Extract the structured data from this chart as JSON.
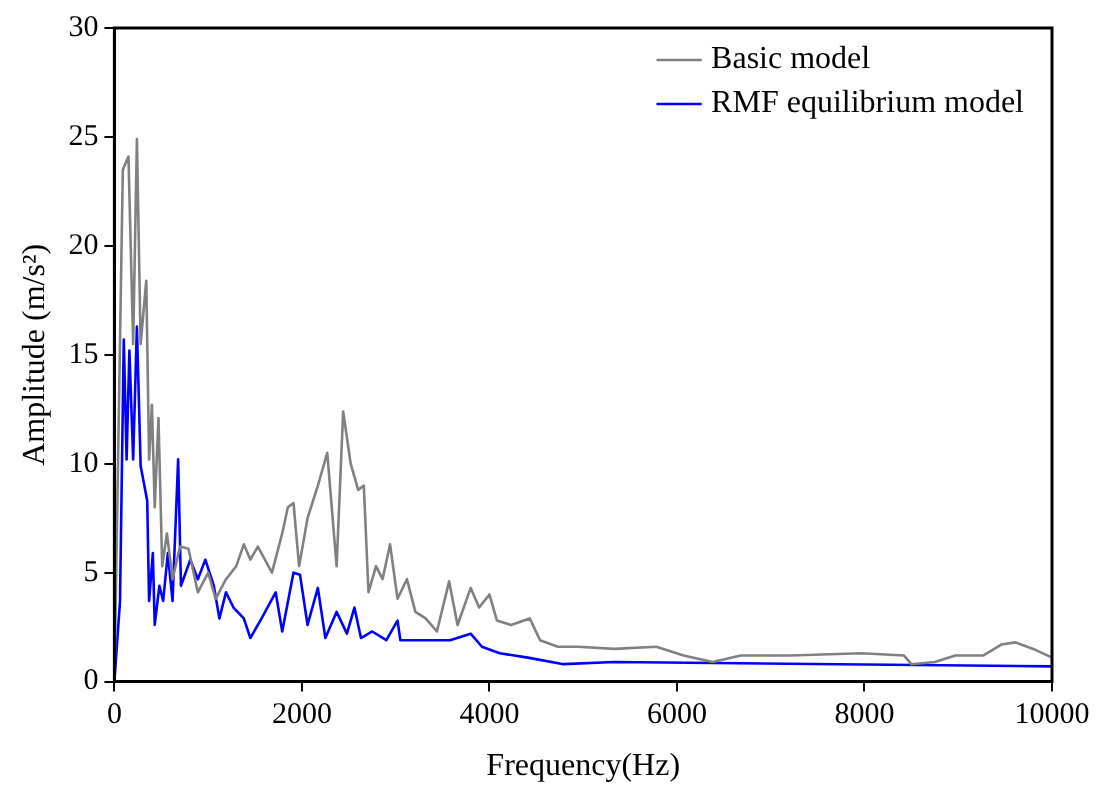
{
  "chart_data": {
    "type": "line",
    "xlabel": "Frequency(Hz)",
    "ylabel": "Amplitude (m/s²)",
    "xlim": [
      0,
      10000
    ],
    "xticks": [
      0,
      2000,
      4000,
      6000,
      8000,
      10000
    ],
    "ylim": [
      0,
      30
    ],
    "yticks": [
      0,
      5,
      10,
      15,
      20,
      25,
      30
    ],
    "grid": false,
    "legend": "top right",
    "marker": "none",
    "line_style": "solid",
    "series": [
      {
        "name": "Basic model",
        "color": "#808080",
        "x": [
          0,
          90,
          150,
          200,
          240,
          280,
          340,
          370,
          400,
          430,
          470,
          510,
          560,
          620,
          700,
          790,
          890,
          1000,
          1080,
          1190,
          1300,
          1380,
          1450,
          1530,
          1680,
          1790,
          1850,
          1910,
          1970,
          2060,
          2170,
          2270,
          2370,
          2440,
          2520,
          2600,
          2660,
          2710,
          2790,
          2860,
          2940,
          3020,
          3120,
          3210,
          3320,
          3440,
          3570,
          3660,
          3800,
          3890,
          4000,
          4080,
          4230,
          4430,
          4540,
          4730,
          4950,
          5330,
          5780,
          6070,
          6380,
          6680,
          7210,
          7970,
          8420,
          8500,
          8750,
          8970,
          9270,
          9460,
          9610,
          9800,
          10000
        ],
        "values": [
          0,
          23.5,
          24.1,
          15.5,
          24.9,
          15.5,
          18.4,
          10.2,
          12.7,
          8,
          12.1,
          5.3,
          6.8,
          4.7,
          6.2,
          6.1,
          4.1,
          5,
          3.8,
          4.7,
          5.3,
          6.3,
          5.6,
          6.2,
          5,
          6.8,
          8,
          8.2,
          5.3,
          7.5,
          9,
          10.5,
          5.3,
          12.4,
          10,
          8.8,
          9,
          4.1,
          5.3,
          4.7,
          6.3,
          3.8,
          4.7,
          3.2,
          2.9,
          2.3,
          4.6,
          2.6,
          4.3,
          3.4,
          4,
          2.8,
          2.6,
          2.9,
          1.9,
          1.6,
          1.6,
          1.5,
          1.6,
          1.2,
          0.9,
          1.2,
          1.2,
          1.3,
          1.2,
          0.8,
          0.9,
          1.2,
          1.2,
          1.7,
          1.8,
          1.5,
          1.1
        ]
      },
      {
        "name": "RMF equilibrium model",
        "color": "#0000ff",
        "x": [
          0,
          60,
          100,
          130,
          160,
          200,
          240,
          280,
          350,
          370,
          410,
          430,
          480,
          520,
          570,
          620,
          680,
          710,
          810,
          890,
          970,
          1060,
          1120,
          1190,
          1270,
          1380,
          1450,
          1570,
          1720,
          1790,
          1910,
          1980,
          2060,
          2170,
          2250,
          2370,
          2480,
          2560,
          2630,
          2750,
          2900,
          3020,
          3050,
          3280,
          3580,
          3800,
          3920,
          4110,
          4410,
          4790,
          5330,
          10000
        ],
        "values": [
          0,
          3.7,
          15.7,
          10.2,
          15.2,
          10.2,
          16.3,
          9.9,
          8.3,
          3.7,
          5.9,
          2.6,
          4.4,
          3.7,
          5.9,
          3.7,
          10.2,
          4.4,
          5.6,
          4.7,
          5.6,
          4.4,
          2.9,
          4.1,
          3.4,
          2.9,
          2,
          2.9,
          4.1,
          2.3,
          5,
          4.9,
          2.6,
          4.3,
          2,
          3.2,
          2.2,
          3.4,
          2,
          2.3,
          1.9,
          2.8,
          1.9,
          1.9,
          1.9,
          2.2,
          1.6,
          1.3,
          1.1,
          0.8,
          0.9,
          0.7
        ]
      }
    ]
  }
}
